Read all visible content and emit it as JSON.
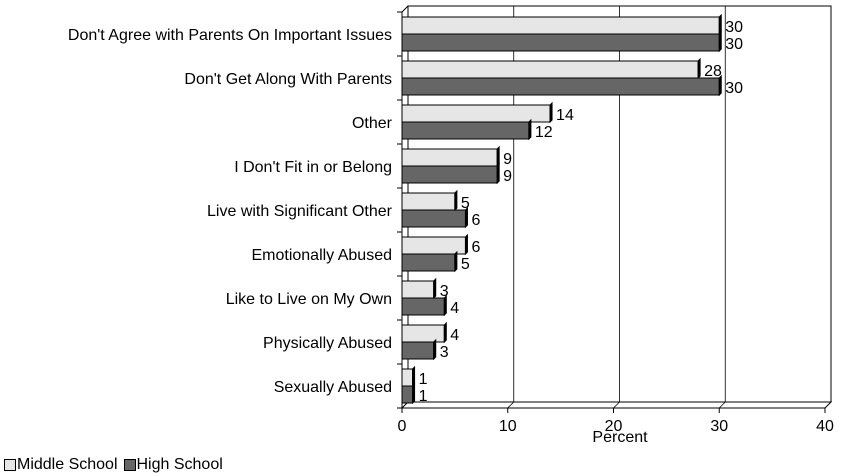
{
  "chart_data": {
    "type": "bar",
    "orientation": "horizontal",
    "categories": [
      "Don't Agree with Parents On Important Issues",
      "Don't Get Along With Parents",
      "Other",
      "I Don't Fit in or Belong",
      "Live with Significant Other",
      "Emotionally Abused",
      "Like to Live on My Own",
      "Physically Abused",
      "Sexually Abused"
    ],
    "series": [
      {
        "name": "Middle School",
        "values": [
          30,
          28,
          14,
          9,
          5,
          6,
          3,
          4,
          1
        ],
        "color": "#e6e6e6"
      },
      {
        "name": "High School",
        "values": [
          30,
          30,
          12,
          9,
          6,
          5,
          4,
          3,
          1
        ],
        "color": "#666666"
      }
    ],
    "xlabel": "Percent",
    "ylabel": "",
    "xlim": [
      0,
      40
    ],
    "xticks": [
      "0",
      "10",
      "20",
      "30",
      "40"
    ],
    "grid": "vertical",
    "legend_position": "bottom-left",
    "data_labels": true
  }
}
